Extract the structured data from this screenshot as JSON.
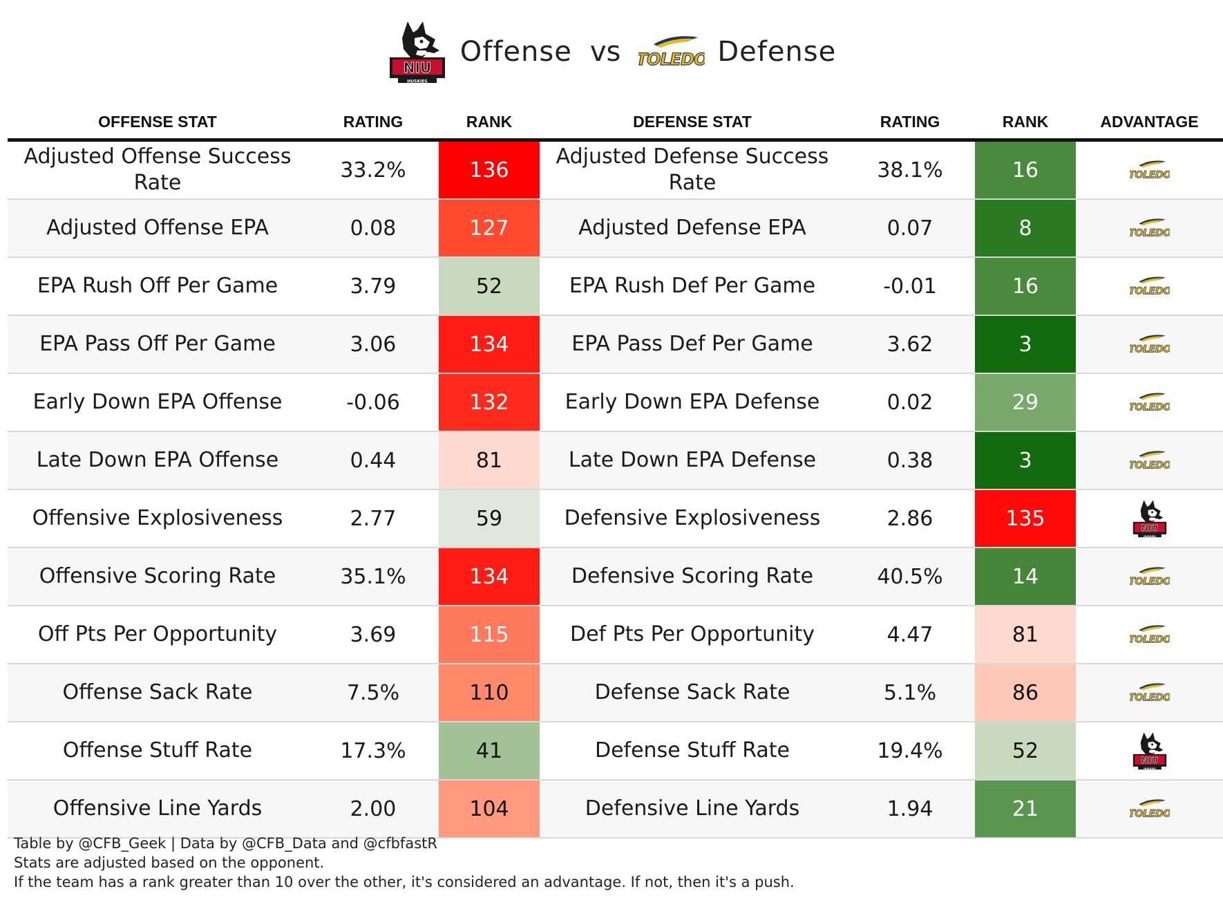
{
  "title": {
    "offense_label": "Offense",
    "vs_label": "vs",
    "defense_label": "Defense",
    "offense_team_icon": "niu-huskies-logo",
    "defense_team_icon": "toledo-rockets-logo"
  },
  "headers": {
    "offense_stat": "OFFENSE STAT",
    "off_rating": "RATING",
    "off_rank": "RANK",
    "defense_stat": "DEFENSE STAT",
    "def_rating": "RATING",
    "def_rank": "RANK",
    "advantage": "ADVANTAGE"
  },
  "colors": {
    "niu_red": "#c8102e",
    "toledo_gold": "#f0b70e",
    "toledo_blue": "#1b3668"
  },
  "chart_data": {
    "type": "table",
    "columns": [
      "OFFENSE STAT",
      "RATING",
      "RANK",
      "DEFENSE STAT",
      "RATING",
      "RANK",
      "ADVANTAGE"
    ],
    "rows": [
      {
        "off_stat": "Adjusted Offense Success Rate",
        "off_rating": "33.2%",
        "off_rank": "136",
        "off_bg": "#ff0000",
        "off_fg": "#ffffff",
        "def_stat": "Adjusted Defense Success Rate",
        "def_rating": "38.1%",
        "def_rank": "16",
        "def_bg": "#4a8a3c",
        "def_fg": "#ffffff",
        "advantage": "toledo"
      },
      {
        "off_stat": "Adjusted Offense EPA",
        "off_rating": "0.08",
        "off_rank": "127",
        "off_bg": "#ff4a2e",
        "off_fg": "#ffffff",
        "def_stat": "Adjusted Defense EPA",
        "def_rating": "0.07",
        "def_rank": "8",
        "def_bg": "#2a7a22",
        "def_fg": "#ffffff",
        "advantage": "toledo"
      },
      {
        "off_stat": "EPA Rush Off Per Game",
        "off_rating": "3.79",
        "off_rank": "52",
        "off_bg": "#c8d9c0",
        "off_fg": "#111111",
        "def_stat": "EPA Rush Def Per Game",
        "def_rating": "-0.01",
        "def_rank": "16",
        "def_bg": "#4a8a3c",
        "def_fg": "#ffffff",
        "advantage": "toledo"
      },
      {
        "off_stat": "EPA Pass Off Per Game",
        "off_rating": "3.06",
        "off_rank": "134",
        "off_bg": "#ff1c12",
        "off_fg": "#ffffff",
        "def_stat": "EPA Pass Def Per Game",
        "def_rating": "3.62",
        "def_rank": "3",
        "def_bg": "#126b0e",
        "def_fg": "#ffffff",
        "advantage": "toledo"
      },
      {
        "off_stat": "Early Down EPA Offense",
        "off_rating": "-0.06",
        "off_rank": "132",
        "off_bg": "#ff2a1c",
        "off_fg": "#ffffff",
        "def_stat": "Early Down EPA Defense",
        "def_rating": "0.02",
        "def_rank": "29",
        "def_bg": "#78a86a",
        "def_fg": "#ffffff",
        "advantage": "toledo"
      },
      {
        "off_stat": "Late Down EPA Offense",
        "off_rating": "0.44",
        "off_rank": "81",
        "off_bg": "#fdd9cf",
        "off_fg": "#111111",
        "def_stat": "Late Down EPA Defense",
        "def_rating": "0.38",
        "def_rank": "3",
        "def_bg": "#126b0e",
        "def_fg": "#ffffff",
        "advantage": "toledo"
      },
      {
        "off_stat": "Offensive Explosiveness",
        "off_rating": "2.77",
        "off_rank": "59",
        "off_bg": "#dfe8da",
        "off_fg": "#111111",
        "def_stat": "Defensive Explosiveness",
        "def_rating": "2.86",
        "def_rank": "135",
        "def_bg": "#ff0a08",
        "def_fg": "#ffffff",
        "advantage": "niu"
      },
      {
        "off_stat": "Offensive Scoring Rate",
        "off_rating": "35.1%",
        "off_rank": "134",
        "off_bg": "#ff1c12",
        "off_fg": "#ffffff",
        "def_stat": "Defensive Scoring Rate",
        "def_rating": "40.5%",
        "def_rank": "14",
        "def_bg": "#458638",
        "def_fg": "#ffffff",
        "advantage": "toledo"
      },
      {
        "off_stat": "Off Pts Per Opportunity",
        "off_rating": "3.69",
        "off_rank": "115",
        "off_bg": "#ff7a5c",
        "off_fg": "#ffffff",
        "def_stat": "Def Pts Per Opportunity",
        "def_rating": "4.47",
        "def_rank": "81",
        "def_bg": "#fdd9cf",
        "def_fg": "#111111",
        "advantage": "toledo"
      },
      {
        "off_stat": "Offense Sack Rate",
        "off_rating": "7.5%",
        "off_rank": "110",
        "off_bg": "#ff8a6a",
        "off_fg": "#111111",
        "def_stat": "Defense Sack Rate",
        "def_rating": "5.1%",
        "def_rank": "86",
        "def_bg": "#fdc8b6",
        "def_fg": "#111111",
        "advantage": "toledo"
      },
      {
        "off_stat": "Offense Stuff Rate",
        "off_rating": "17.3%",
        "off_rank": "41",
        "off_bg": "#a2c196",
        "off_fg": "#111111",
        "def_stat": "Defense Stuff Rate",
        "def_rating": "19.4%",
        "def_rank": "52",
        "def_bg": "#c8d9c0",
        "def_fg": "#111111",
        "advantage": "niu"
      },
      {
        "off_stat": "Offensive Line Yards",
        "off_rating": "2.00",
        "off_rank": "104",
        "off_bg": "#ff9a7e",
        "off_fg": "#111111",
        "def_stat": "Defensive Line Yards",
        "def_rating": "1.94",
        "def_rank": "21",
        "def_bg": "#5a9650",
        "def_fg": "#ffffff",
        "advantage": "toledo"
      }
    ]
  },
  "footer": {
    "line1": "Table by @CFB_Geek | Data by @CFB_Data and @cfbfastR",
    "line2": "Stats are adjusted based on the opponent.",
    "line3": "If the team has a rank greater than 10 over the other, it's considered an advantage. If not, then it's a push."
  }
}
